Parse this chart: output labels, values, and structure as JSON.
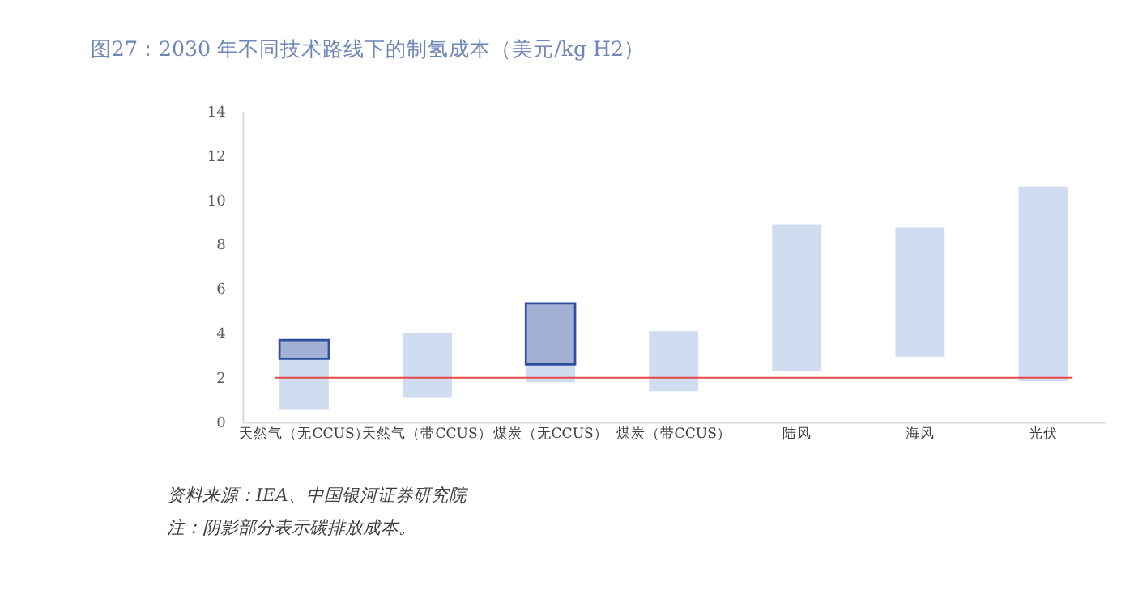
{
  "chart_data": {
    "type": "bar",
    "title": "图27：2030 年不同技术路线下的制氢成本（美元/kg H2）",
    "categories": [
      "天然气（无CCUS）",
      "天然气（带CCUS）",
      "煤炭（无CCUS）",
      "煤炭（带CCUS）",
      "陆风",
      "海风",
      "光伏"
    ],
    "series": [
      {
        "color": "#d0ddf0",
        "base": [
          0.55,
          1.1,
          1.8,
          1.4,
          2.3,
          2.95,
          1.85
        ],
        "values": [
          2.3,
          2.9,
          0.8,
          2.7,
          6.6,
          5.8,
          8.75
        ]
      },
      {
        "color": "#2e4f9e",
        "base": [
          2.85,
          null,
          2.6,
          null,
          null,
          null,
          null
        ],
        "values": [
          0.85,
          null,
          2.75,
          null,
          null,
          null,
          null
        ]
      }
    ],
    "ylim": [
      0,
      14
    ],
    "yticks": [
      0,
      2,
      4,
      6,
      8,
      10,
      12,
      14
    ],
    "grid": false,
    "ref_lines": [
      {
        "axis": "y",
        "value": 2,
        "color": "#e8474a"
      }
    ],
    "annotations": [
      "资料来源：IEA、中国银河证券研究院",
      "注：阴影部分表示碳排放成本。"
    ]
  }
}
